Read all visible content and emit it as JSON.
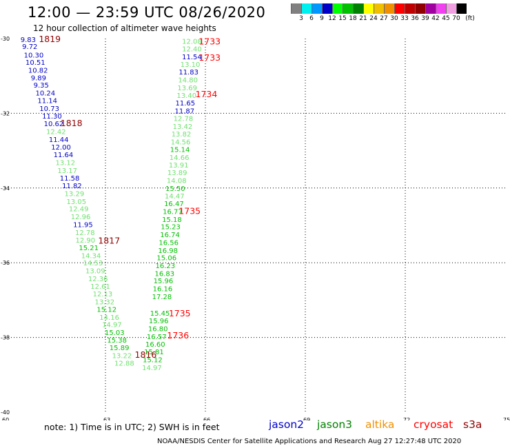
{
  "header": {
    "title": "12:00 — 23:59 UTC 08/26/2020",
    "subtitle": "12 hour collection of altimeter wave heights"
  },
  "legend": {
    "colors": [
      "#808080",
      "#00f0f0",
      "#0098ff",
      "#0000c8",
      "#00ff00",
      "#00c000",
      "#008000",
      "#ffff00",
      "#f0c000",
      "#f09000",
      "#ff0000",
      "#c00000",
      "#900000",
      "#a000a0",
      "#f040f0",
      "#f0a0e0",
      "#000000"
    ],
    "labels": [
      "3",
      "6",
      "9",
      "12",
      "15",
      "18",
      "21",
      "24",
      "27",
      "30",
      "33",
      "36",
      "39",
      "42",
      "45",
      "70",
      "(ft)"
    ]
  },
  "chart_data": {
    "type": "scatter",
    "x_ticks": [
      "60",
      "63",
      "66",
      "69",
      "72",
      "75"
    ],
    "y_ticks": [
      "-30",
      "-32",
      "-34",
      "-36",
      "-38",
      "-40"
    ],
    "xlim": [
      60,
      75
    ],
    "ylim": [
      -40,
      -30
    ],
    "grid": true,
    "color_scale": [
      {
        "max": 12,
        "color": "#0000c8"
      },
      {
        "max": 15,
        "color": "#70e070"
      },
      {
        "max": 18,
        "color": "#00c000"
      },
      {
        "max": 99,
        "color": "#008000"
      }
    ],
    "tracks": [
      {
        "name": "track-1818-1819",
        "points": [
          {
            "lon": 60.45,
            "lat": -30.02,
            "v": "9.83"
          },
          {
            "lon": 60.5,
            "lat": -30.2,
            "v": "9.72"
          },
          {
            "lon": 60.55,
            "lat": -30.43,
            "v": "10.30"
          },
          {
            "lon": 60.6,
            "lat": -30.63,
            "v": "10.51"
          },
          {
            "lon": 60.68,
            "lat": -30.84,
            "v": "10.82"
          },
          {
            "lon": 60.76,
            "lat": -31.04,
            "v": "9.89"
          },
          {
            "lon": 60.84,
            "lat": -31.24,
            "v": "9.35"
          },
          {
            "lon": 60.9,
            "lat": -31.45,
            "v": "10.24"
          },
          {
            "lon": 60.96,
            "lat": -31.65,
            "v": "11.14"
          },
          {
            "lon": 61.02,
            "lat": -31.86,
            "v": "10.73"
          },
          {
            "lon": 61.1,
            "lat": -32.07,
            "v": "11.30"
          },
          {
            "lon": 61.15,
            "lat": -32.27,
            "v": "10.62"
          },
          {
            "lon": 61.22,
            "lat": -32.48,
            "v": "12.42"
          },
          {
            "lon": 61.3,
            "lat": -32.69,
            "v": "11.44"
          },
          {
            "lon": 61.37,
            "lat": -32.9,
            "v": "12.00"
          },
          {
            "lon": 61.44,
            "lat": -33.1,
            "v": "11.64"
          },
          {
            "lon": 61.5,
            "lat": -33.31,
            "v": "13.12"
          },
          {
            "lon": 61.56,
            "lat": -33.52,
            "v": "13.17"
          },
          {
            "lon": 61.63,
            "lat": -33.73,
            "v": "11.58"
          },
          {
            "lon": 61.7,
            "lat": -33.93,
            "v": "11.82"
          },
          {
            "lon": 61.77,
            "lat": -34.14,
            "v": "13.29"
          },
          {
            "lon": 61.83,
            "lat": -34.35,
            "v": "13.05"
          },
          {
            "lon": 61.9,
            "lat": -34.55,
            "v": "12.49"
          },
          {
            "lon": 61.96,
            "lat": -34.76,
            "v": "12.96"
          },
          {
            "lon": 62.03,
            "lat": -34.97,
            "v": "11.95"
          },
          {
            "lon": 62.09,
            "lat": -35.18,
            "v": "12.78"
          },
          {
            "lon": 62.1,
            "lat": -35.39,
            "v": "12.90"
          },
          {
            "lon": 62.2,
            "lat": -35.59,
            "v": "15.21"
          },
          {
            "lon": 62.27,
            "lat": -35.8,
            "v": "14.34"
          },
          {
            "lon": 62.33,
            "lat": -36.0,
            "v": "14.53"
          },
          {
            "lon": 62.4,
            "lat": -36.21,
            "v": "13.09"
          },
          {
            "lon": 62.48,
            "lat": -36.42,
            "v": "12.36"
          },
          {
            "lon": 62.55,
            "lat": -36.62,
            "v": "12.61"
          },
          {
            "lon": 62.62,
            "lat": -36.83,
            "v": "12.13"
          },
          {
            "lon": 62.68,
            "lat": -37.04,
            "v": "13.32"
          },
          {
            "lon": 62.74,
            "lat": -37.24,
            "v": "15.12"
          },
          {
            "lon": 62.82,
            "lat": -37.45,
            "v": "14.16"
          },
          {
            "lon": 62.9,
            "lat": -37.65,
            "v": "14.97"
          },
          {
            "lon": 62.98,
            "lat": -37.86,
            "v": "15.03"
          },
          {
            "lon": 63.05,
            "lat": -38.06,
            "v": "15.38"
          },
          {
            "lon": 63.12,
            "lat": -38.27,
            "v": "15.89"
          },
          {
            "lon": 63.2,
            "lat": -38.48,
            "v": "13.22"
          },
          {
            "lon": 63.27,
            "lat": -38.68,
            "v": "12.88"
          }
        ]
      },
      {
        "name": "track-1733-1736",
        "points": [
          {
            "lon": 65.3,
            "lat": -30.06,
            "v": "12.08"
          },
          {
            "lon": 65.3,
            "lat": -30.27,
            "v": "12.40"
          },
          {
            "lon": 65.3,
            "lat": -30.48,
            "v": "11.54"
          },
          {
            "lon": 65.25,
            "lat": -30.68,
            "v": "13.10"
          },
          {
            "lon": 65.2,
            "lat": -30.89,
            "v": "11.83"
          },
          {
            "lon": 65.18,
            "lat": -31.1,
            "v": "14.80"
          },
          {
            "lon": 65.16,
            "lat": -31.31,
            "v": "13.69"
          },
          {
            "lon": 65.14,
            "lat": -31.51,
            "v": "13.40"
          },
          {
            "lon": 65.1,
            "lat": -31.72,
            "v": "11.65"
          },
          {
            "lon": 65.08,
            "lat": -31.93,
            "v": "11.87"
          },
          {
            "lon": 65.04,
            "lat": -32.13,
            "v": "12.78"
          },
          {
            "lon": 65.02,
            "lat": -32.34,
            "v": "13.42"
          },
          {
            "lon": 64.98,
            "lat": -32.55,
            "v": "13.82"
          },
          {
            "lon": 64.96,
            "lat": -32.76,
            "v": "14.56"
          },
          {
            "lon": 64.94,
            "lat": -32.96,
            "v": "15.14"
          },
          {
            "lon": 64.92,
            "lat": -33.17,
            "v": "14.66"
          },
          {
            "lon": 64.9,
            "lat": -33.38,
            "v": "13.91"
          },
          {
            "lon": 64.86,
            "lat": -33.58,
            "v": "13.89"
          },
          {
            "lon": 64.84,
            "lat": -33.79,
            "v": "14.08"
          },
          {
            "lon": 64.8,
            "lat": -34.0,
            "v": "15.50"
          },
          {
            "lon": 64.78,
            "lat": -34.21,
            "v": "14.47"
          },
          {
            "lon": 64.76,
            "lat": -34.41,
            "v": "16.47"
          },
          {
            "lon": 64.72,
            "lat": -34.62,
            "v": "16.77"
          },
          {
            "lon": 64.7,
            "lat": -34.83,
            "v": "15.18"
          },
          {
            "lon": 64.66,
            "lat": -35.03,
            "v": "15.23"
          },
          {
            "lon": 64.64,
            "lat": -35.24,
            "v": "16.74"
          },
          {
            "lon": 64.6,
            "lat": -35.45,
            "v": "16.56"
          },
          {
            "lon": 64.58,
            "lat": -35.66,
            "v": "16.98"
          },
          {
            "lon": 64.54,
            "lat": -35.86,
            "v": "15.06"
          },
          {
            "lon": 64.5,
            "lat": -36.07,
            "v": "16.23"
          },
          {
            "lon": 64.48,
            "lat": -36.28,
            "v": "16.83"
          },
          {
            "lon": 64.44,
            "lat": -36.48,
            "v": "15.96"
          },
          {
            "lon": 64.42,
            "lat": -36.69,
            "v": "16.16"
          },
          {
            "lon": 64.4,
            "lat": -36.9,
            "v": "17.28"
          },
          {
            "lon": 64.34,
            "lat": -37.34,
            "v": "15.45"
          },
          {
            "lon": 64.3,
            "lat": -37.55,
            "v": "15.96"
          },
          {
            "lon": 64.28,
            "lat": -37.76,
            "v": "16.80"
          },
          {
            "lon": 64.24,
            "lat": -37.97,
            "v": "16.57"
          },
          {
            "lon": 64.2,
            "lat": -38.17,
            "v": "16.60"
          },
          {
            "lon": 64.16,
            "lat": -38.38,
            "v": "15.81"
          },
          {
            "lon": 64.12,
            "lat": -38.59,
            "v": "15.12"
          },
          {
            "lon": 64.1,
            "lat": -38.8,
            "v": "14.97"
          }
        ]
      }
    ],
    "time_labels": [
      {
        "text": "1819",
        "lon": 61.0,
        "lat": -30.0,
        "color": "#900000"
      },
      {
        "text": "1818",
        "lon": 61.65,
        "lat": -32.25,
        "color": "#900000"
      },
      {
        "text": "1817",
        "lon": 62.78,
        "lat": -35.4,
        "color": "#900000"
      },
      {
        "text": "1816",
        "lon": 63.88,
        "lat": -38.45,
        "color": "#900000"
      },
      {
        "text": "1733",
        "lon": 65.8,
        "lat": -30.06,
        "color": "#ff0000"
      },
      {
        "text": "1733",
        "lon": 65.8,
        "lat": -30.5,
        "color": "#ff0000"
      },
      {
        "text": "1734",
        "lon": 65.7,
        "lat": -31.48,
        "color": "#ff0000"
      },
      {
        "text": "1735",
        "lon": 65.2,
        "lat": -34.6,
        "color": "#ff0000"
      },
      {
        "text": "1735",
        "lon": 64.9,
        "lat": -37.34,
        "color": "#ff0000"
      },
      {
        "text": "1736",
        "lon": 64.85,
        "lat": -37.93,
        "color": "#ff0000"
      }
    ]
  },
  "footer": {
    "note": "note:  1) Time is in UTC; 2) SWH is in feet",
    "satellites": [
      {
        "name": "jason2",
        "color": "#0000c8"
      },
      {
        "name": "jason3",
        "color": "#008000"
      },
      {
        "name": "altika",
        "color": "#f09000"
      },
      {
        "name": "cryosat",
        "color": "#ff0000"
      },
      {
        "name": "s3a",
        "color": "#900000"
      }
    ],
    "credit": "NOAA/NESDIS Center for Satellite Applications and Research      Aug 27 12:27:48 UTC 2020"
  }
}
